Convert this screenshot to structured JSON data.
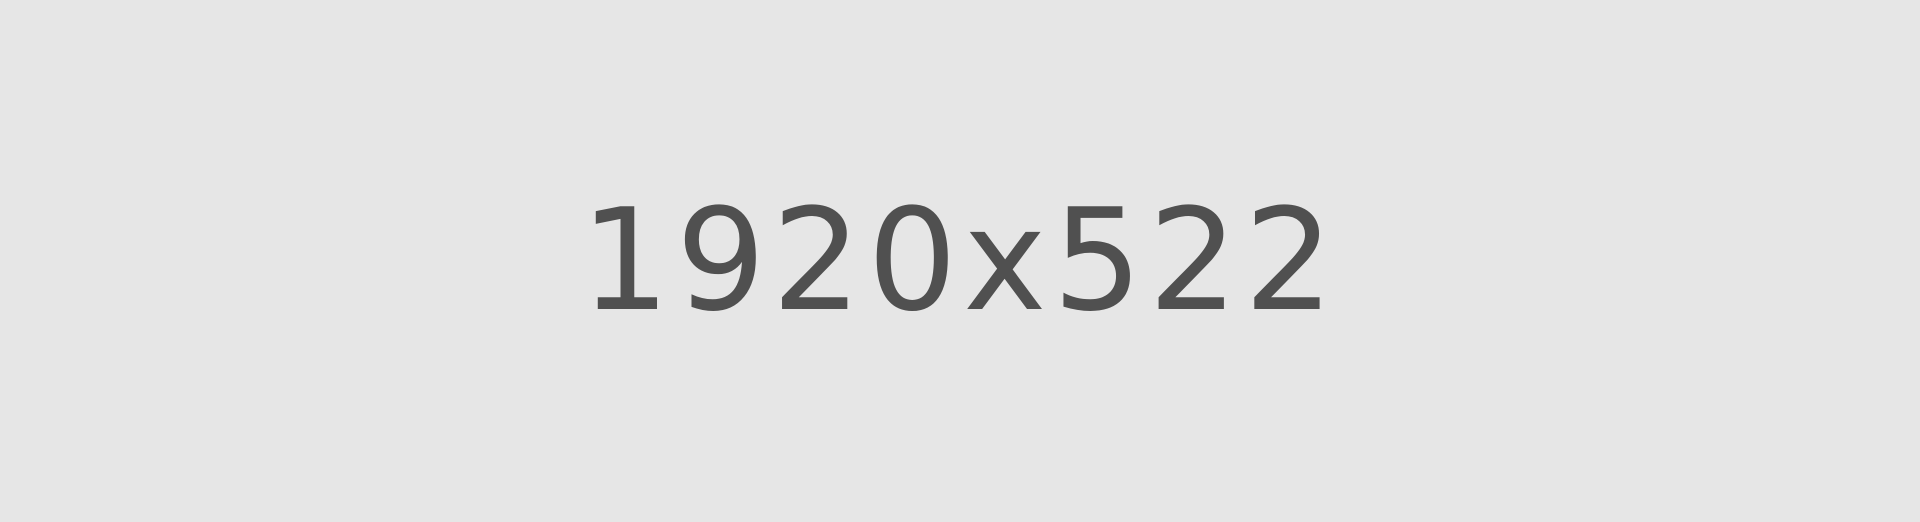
{
  "placeholder": {
    "label": "1920x522",
    "background_color": "#e6e6e6",
    "text_color": "#505050"
  }
}
